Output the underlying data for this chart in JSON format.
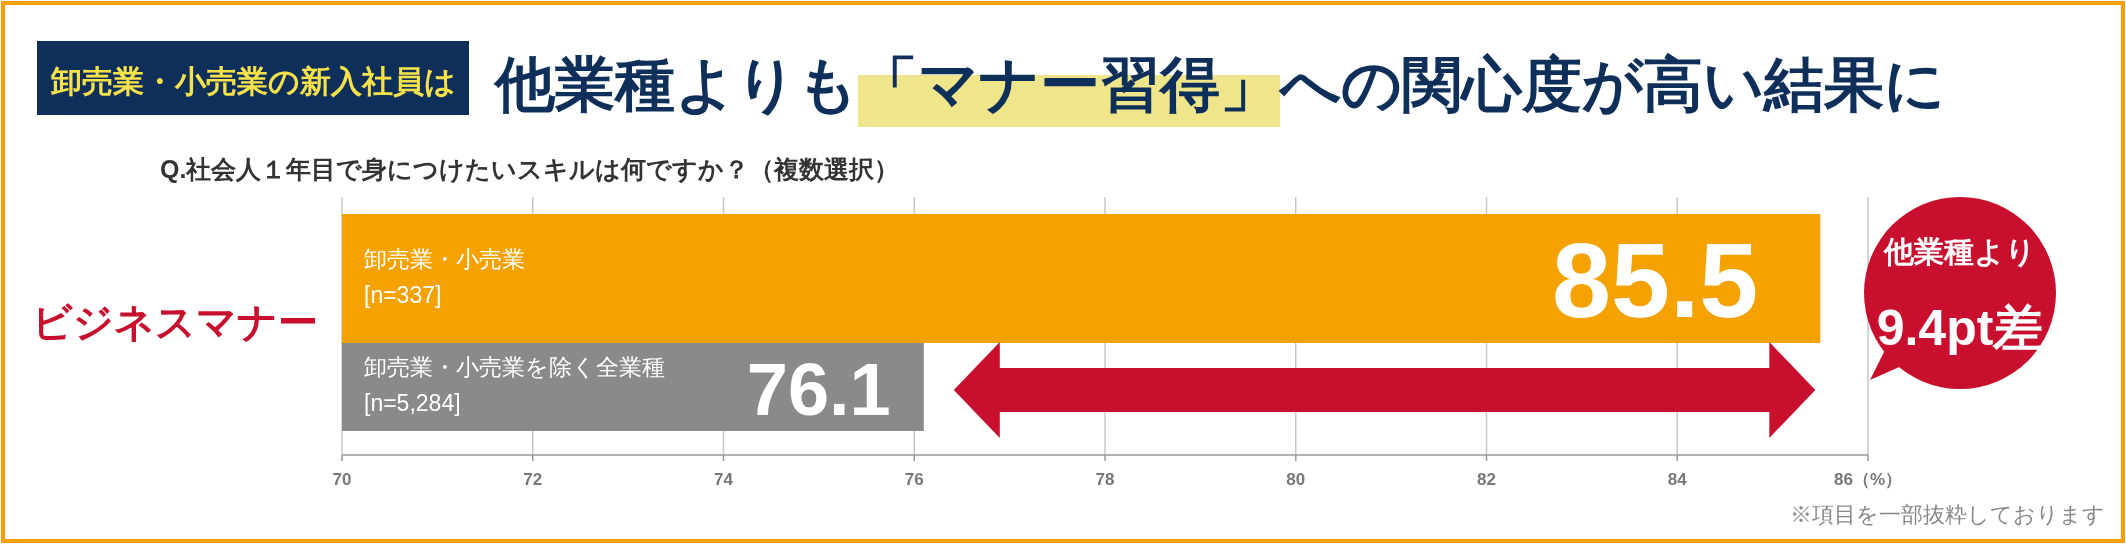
{
  "chart_data": {
    "type": "bar",
    "orientation": "horizontal",
    "title": "他業種よりも「マナー習得」への関心度が高い結果に",
    "subtitle": "Q.社会人１年目で身につけたいスキルは何ですか？（複数選択）",
    "categories": [
      "ビジネスマナー"
    ],
    "series": [
      {
        "name": "卸売業・小売業\n[n=337]",
        "color": "#f5a100",
        "values": [
          85.5
        ]
      },
      {
        "name": "卸売業・小売業を除く全業種\n[n=5,284]",
        "color": "#8a8a8a",
        "values": [
          76.1
        ]
      }
    ],
    "xlim": [
      70,
      86
    ],
    "xticks": [
      70,
      72,
      74,
      76,
      78,
      80,
      82,
      84,
      {
        "value": 86,
        "label": "86（%）"
      }
    ],
    "grid": "x",
    "data_labels": true,
    "annotations": [
      "卸売業・小売業の新入社員は",
      "他業種より\n9.4pt差",
      "※項目を一部抜粋しております"
    ]
  }
}
